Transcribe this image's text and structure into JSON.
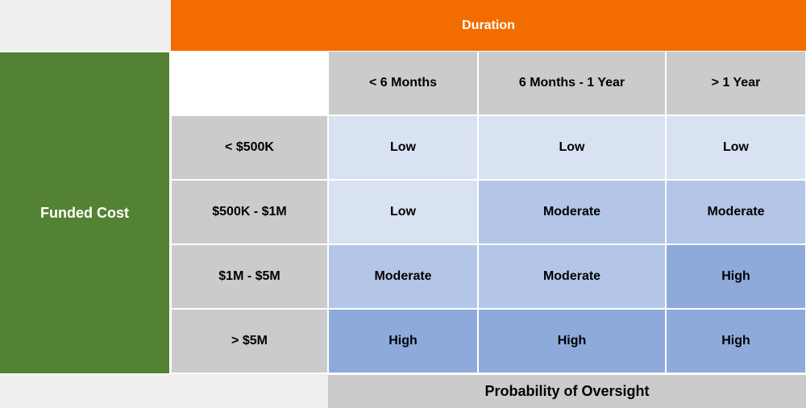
{
  "header": {
    "duration_label": "Duration"
  },
  "side": {
    "funded_cost_label": "Funded Cost"
  },
  "columns": [
    "< 6 Months",
    "6 Months - 1 Year",
    "> 1 Year"
  ],
  "rows": [
    {
      "label": "< $500K",
      "cells": [
        "Low",
        "Low",
        "Low"
      ]
    },
    {
      "label": "$500K - $1M",
      "cells": [
        "Low",
        "Moderate",
        "Moderate"
      ]
    },
    {
      "label": "$1M - $5M",
      "cells": [
        "Moderate",
        "Moderate",
        "High"
      ]
    },
    {
      "label": "> $5M",
      "cells": [
        "High",
        "High",
        "High"
      ]
    }
  ],
  "footer": {
    "probability_label": "Probability of Oversight"
  },
  "colors": {
    "duration_header": "#f36c00",
    "funded_cost": "#548235",
    "header_gray": "#cbcbcb",
    "low": "#d9e2f3",
    "moderate": "#b4c6e7",
    "high": "#8eaadb"
  }
}
